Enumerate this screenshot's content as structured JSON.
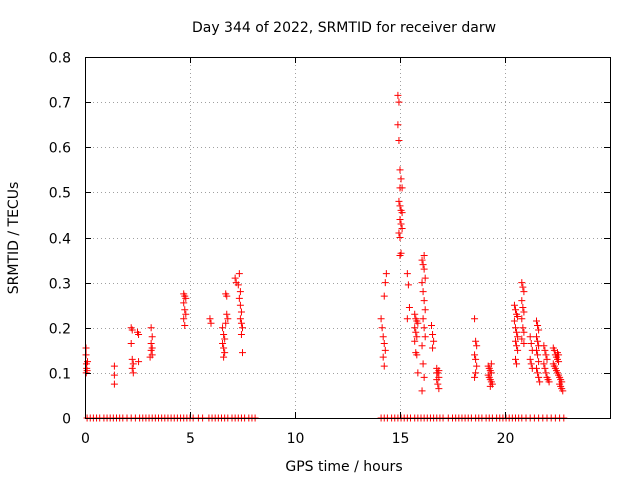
{
  "chart_data": {
    "type": "scatter",
    "title": "Day 344 of 2022, SRMTID for receiver darw",
    "xlabel": "GPS time / hours",
    "ylabel": "SRMTID / TECUs",
    "xlim": [
      0,
      25
    ],
    "ylim": [
      0,
      0.8
    ],
    "xticks": [
      0,
      5,
      10,
      15,
      20
    ],
    "xtick_labels": [
      "0",
      "5",
      "10",
      "15",
      "20"
    ],
    "yticks": [
      0,
      0.1,
      0.2,
      0.3,
      0.4,
      0.5,
      0.6,
      0.7,
      0.8
    ],
    "ytick_labels": [
      "0",
      "0.1",
      "0.2",
      "0.3",
      "0.4",
      "0.5",
      "0.6",
      "0.7",
      "0.8"
    ],
    "grid": true,
    "marker": "+",
    "marker_color": "#ff0000",
    "series": [
      {
        "name": "SRMTID",
        "points": [
          [
            0.05,
            0.155
          ],
          [
            0.05,
            0.14
          ],
          [
            0.07,
            0.12
          ],
          [
            0.08,
            0.11
          ],
          [
            0.1,
            0.105
          ],
          [
            0.12,
            0.125
          ],
          [
            0.06,
            0.1
          ],
          [
            1.4,
            0.115
          ],
          [
            1.4,
            0.095
          ],
          [
            1.4,
            0.075
          ],
          [
            2.2,
            0.2
          ],
          [
            2.25,
            0.195
          ],
          [
            2.2,
            0.165
          ],
          [
            2.25,
            0.13
          ],
          [
            2.3,
            0.12
          ],
          [
            2.25,
            0.11
          ],
          [
            2.3,
            0.1
          ],
          [
            2.5,
            0.19
          ],
          [
            2.55,
            0.185
          ],
          [
            2.55,
            0.125
          ],
          [
            3.15,
            0.2
          ],
          [
            3.2,
            0.18
          ],
          [
            3.15,
            0.165
          ],
          [
            3.2,
            0.155
          ],
          [
            3.15,
            0.15
          ],
          [
            3.2,
            0.14
          ],
          [
            3.1,
            0.135
          ],
          [
            4.7,
            0.275
          ],
          [
            4.75,
            0.27
          ],
          [
            4.8,
            0.265
          ],
          [
            4.7,
            0.255
          ],
          [
            4.75,
            0.24
          ],
          [
            4.8,
            0.23
          ],
          [
            4.7,
            0.22
          ],
          [
            4.75,
            0.205
          ],
          [
            5.95,
            0.22
          ],
          [
            6.0,
            0.21
          ],
          [
            6.55,
            0.2
          ],
          [
            6.6,
            0.185
          ],
          [
            6.65,
            0.175
          ],
          [
            6.55,
            0.165
          ],
          [
            6.6,
            0.155
          ],
          [
            6.65,
            0.145
          ],
          [
            6.6,
            0.135
          ],
          [
            6.7,
            0.275
          ],
          [
            6.75,
            0.27
          ],
          [
            6.75,
            0.23
          ],
          [
            6.8,
            0.22
          ],
          [
            6.7,
            0.21
          ],
          [
            7.15,
            0.31
          ],
          [
            7.2,
            0.3
          ],
          [
            7.3,
            0.295
          ],
          [
            7.35,
            0.32
          ],
          [
            7.4,
            0.28
          ],
          [
            7.35,
            0.265
          ],
          [
            7.4,
            0.25
          ],
          [
            7.45,
            0.235
          ],
          [
            7.4,
            0.22
          ],
          [
            7.45,
            0.21
          ],
          [
            7.5,
            0.2
          ],
          [
            7.45,
            0.185
          ],
          [
            7.5,
            0.145
          ],
          [
            14.1,
            0.22
          ],
          [
            14.15,
            0.2
          ],
          [
            14.2,
            0.18
          ],
          [
            14.25,
            0.165
          ],
          [
            14.3,
            0.15
          ],
          [
            14.2,
            0.135
          ],
          [
            14.25,
            0.115
          ],
          [
            14.25,
            0.27
          ],
          [
            14.3,
            0.3
          ],
          [
            14.35,
            0.32
          ],
          [
            14.9,
            0.715
          ],
          [
            14.95,
            0.7
          ],
          [
            14.9,
            0.65
          ],
          [
            14.95,
            0.615
          ],
          [
            15.0,
            0.55
          ],
          [
            15.05,
            0.53
          ],
          [
            15.0,
            0.51
          ],
          [
            15.1,
            0.51
          ],
          [
            14.95,
            0.48
          ],
          [
            15.0,
            0.47
          ],
          [
            15.05,
            0.46
          ],
          [
            15.1,
            0.455
          ],
          [
            15.0,
            0.44
          ],
          [
            15.05,
            0.43
          ],
          [
            15.1,
            0.42
          ],
          [
            14.95,
            0.41
          ],
          [
            15.0,
            0.4
          ],
          [
            15.05,
            0.365
          ],
          [
            15.0,
            0.36
          ],
          [
            15.35,
            0.32
          ],
          [
            15.4,
            0.295
          ],
          [
            15.45,
            0.245
          ],
          [
            15.35,
            0.22
          ],
          [
            15.7,
            0.23
          ],
          [
            15.75,
            0.22
          ],
          [
            15.8,
            0.215
          ],
          [
            15.85,
            0.21
          ],
          [
            15.7,
            0.2
          ],
          [
            15.75,
            0.19
          ],
          [
            15.8,
            0.18
          ],
          [
            15.7,
            0.17
          ],
          [
            15.75,
            0.145
          ],
          [
            15.8,
            0.14
          ],
          [
            15.85,
            0.1
          ],
          [
            16.05,
            0.35
          ],
          [
            16.1,
            0.34
          ],
          [
            16.15,
            0.33
          ],
          [
            16.2,
            0.31
          ],
          [
            16.05,
            0.3
          ],
          [
            16.1,
            0.28
          ],
          [
            16.15,
            0.26
          ],
          [
            16.2,
            0.24
          ],
          [
            16.1,
            0.22
          ],
          [
            16.15,
            0.2
          ],
          [
            16.2,
            0.18
          ],
          [
            16.05,
            0.16
          ],
          [
            16.1,
            0.12
          ],
          [
            16.15,
            0.09
          ],
          [
            16.05,
            0.06
          ],
          [
            16.15,
            0.36
          ],
          [
            16.5,
            0.205
          ],
          [
            16.55,
            0.185
          ],
          [
            16.6,
            0.17
          ],
          [
            16.55,
            0.155
          ],
          [
            16.75,
            0.11
          ],
          [
            16.8,
            0.1
          ],
          [
            16.85,
            0.09
          ],
          [
            16.75,
            0.085
          ],
          [
            16.8,
            0.075
          ],
          [
            16.85,
            0.065
          ],
          [
            16.75,
            0.1
          ],
          [
            16.85,
            0.105
          ],
          [
            18.55,
            0.22
          ],
          [
            18.6,
            0.17
          ],
          [
            18.65,
            0.16
          ],
          [
            18.55,
            0.14
          ],
          [
            18.6,
            0.13
          ],
          [
            18.65,
            0.115
          ],
          [
            18.6,
            0.1
          ],
          [
            18.55,
            0.09
          ],
          [
            19.2,
            0.115
          ],
          [
            19.25,
            0.11
          ],
          [
            19.3,
            0.105
          ],
          [
            19.35,
            0.1
          ],
          [
            19.2,
            0.095
          ],
          [
            19.25,
            0.09
          ],
          [
            19.3,
            0.085
          ],
          [
            19.35,
            0.08
          ],
          [
            19.4,
            0.075
          ],
          [
            19.3,
            0.07
          ],
          [
            19.35,
            0.12
          ],
          [
            20.45,
            0.25
          ],
          [
            20.5,
            0.24
          ],
          [
            20.55,
            0.23
          ],
          [
            20.6,
            0.225
          ],
          [
            20.45,
            0.215
          ],
          [
            20.5,
            0.2
          ],
          [
            20.55,
            0.19
          ],
          [
            20.6,
            0.18
          ],
          [
            20.5,
            0.17
          ],
          [
            20.55,
            0.16
          ],
          [
            20.6,
            0.15
          ],
          [
            20.5,
            0.13
          ],
          [
            20.55,
            0.12
          ],
          [
            20.8,
            0.3
          ],
          [
            20.85,
            0.29
          ],
          [
            20.9,
            0.28
          ],
          [
            20.8,
            0.26
          ],
          [
            20.85,
            0.245
          ],
          [
            20.9,
            0.235
          ],
          [
            20.8,
            0.22
          ],
          [
            20.85,
            0.2
          ],
          [
            20.9,
            0.19
          ],
          [
            20.8,
            0.175
          ],
          [
            20.9,
            0.165
          ],
          [
            21.2,
            0.18
          ],
          [
            21.25,
            0.165
          ],
          [
            21.3,
            0.15
          ],
          [
            21.2,
            0.13
          ],
          [
            21.25,
            0.12
          ],
          [
            21.3,
            0.11
          ],
          [
            21.5,
            0.215
          ],
          [
            21.55,
            0.205
          ],
          [
            21.6,
            0.195
          ],
          [
            21.5,
            0.18
          ],
          [
            21.55,
            0.17
          ],
          [
            21.6,
            0.16
          ],
          [
            21.5,
            0.15
          ],
          [
            21.55,
            0.14
          ],
          [
            21.6,
            0.125
          ],
          [
            21.5,
            0.11
          ],
          [
            21.55,
            0.1
          ],
          [
            21.6,
            0.09
          ],
          [
            21.65,
            0.08
          ],
          [
            21.85,
            0.16
          ],
          [
            21.9,
            0.15
          ],
          [
            21.95,
            0.14
          ],
          [
            22.0,
            0.13
          ],
          [
            21.85,
            0.12
          ],
          [
            21.9,
            0.11
          ],
          [
            21.95,
            0.1
          ],
          [
            22.0,
            0.09
          ],
          [
            22.05,
            0.085
          ],
          [
            22.1,
            0.08
          ],
          [
            22.3,
            0.155
          ],
          [
            22.35,
            0.15
          ],
          [
            22.4,
            0.14
          ],
          [
            22.45,
            0.135
          ],
          [
            22.5,
            0.13
          ],
          [
            22.55,
            0.125
          ],
          [
            22.3,
            0.12
          ],
          [
            22.35,
            0.115
          ],
          [
            22.4,
            0.11
          ],
          [
            22.45,
            0.105
          ],
          [
            22.5,
            0.1
          ],
          [
            22.55,
            0.095
          ],
          [
            22.6,
            0.09
          ],
          [
            22.65,
            0.085
          ],
          [
            22.7,
            0.08
          ],
          [
            22.6,
            0.075
          ],
          [
            22.65,
            0.07
          ],
          [
            22.7,
            0.065
          ],
          [
            22.75,
            0.06
          ],
          [
            22.5,
            0.145
          ],
          [
            22.55,
            0.14
          ]
        ],
        "zero_points_x": [
          0.1,
          0.25,
          0.4,
          0.55,
          0.7,
          0.9,
          1.05,
          1.2,
          1.35,
          1.5,
          1.65,
          1.8,
          2.0,
          2.2,
          2.4,
          2.6,
          2.75,
          2.9,
          3.05,
          3.2,
          3.35,
          3.5,
          3.65,
          3.8,
          3.95,
          4.1,
          4.25,
          4.4,
          4.55,
          4.7,
          4.85,
          5.0,
          5.15,
          5.4,
          5.6,
          5.9,
          6.05,
          6.2,
          6.35,
          6.5,
          6.65,
          6.8,
          7.0,
          7.15,
          7.3,
          7.45,
          7.6,
          7.8,
          7.95,
          8.1,
          14.1,
          14.25,
          14.4,
          14.6,
          14.75,
          14.9,
          15.05,
          15.2,
          15.35,
          15.5,
          15.7,
          15.85,
          16.0,
          16.15,
          16.3,
          16.45,
          16.6,
          16.75,
          16.9,
          17.05,
          17.3,
          17.5,
          17.65,
          17.8,
          17.95,
          18.1,
          18.25,
          18.4,
          18.6,
          18.75,
          18.9,
          19.1,
          19.25,
          19.4,
          19.6,
          19.75,
          19.9,
          20.05,
          20.2,
          20.35,
          20.5,
          20.65,
          20.8,
          21.0,
          21.2,
          21.4,
          21.6,
          21.8,
          22.0,
          22.2,
          22.4,
          22.6,
          22.8
        ]
      }
    ]
  }
}
